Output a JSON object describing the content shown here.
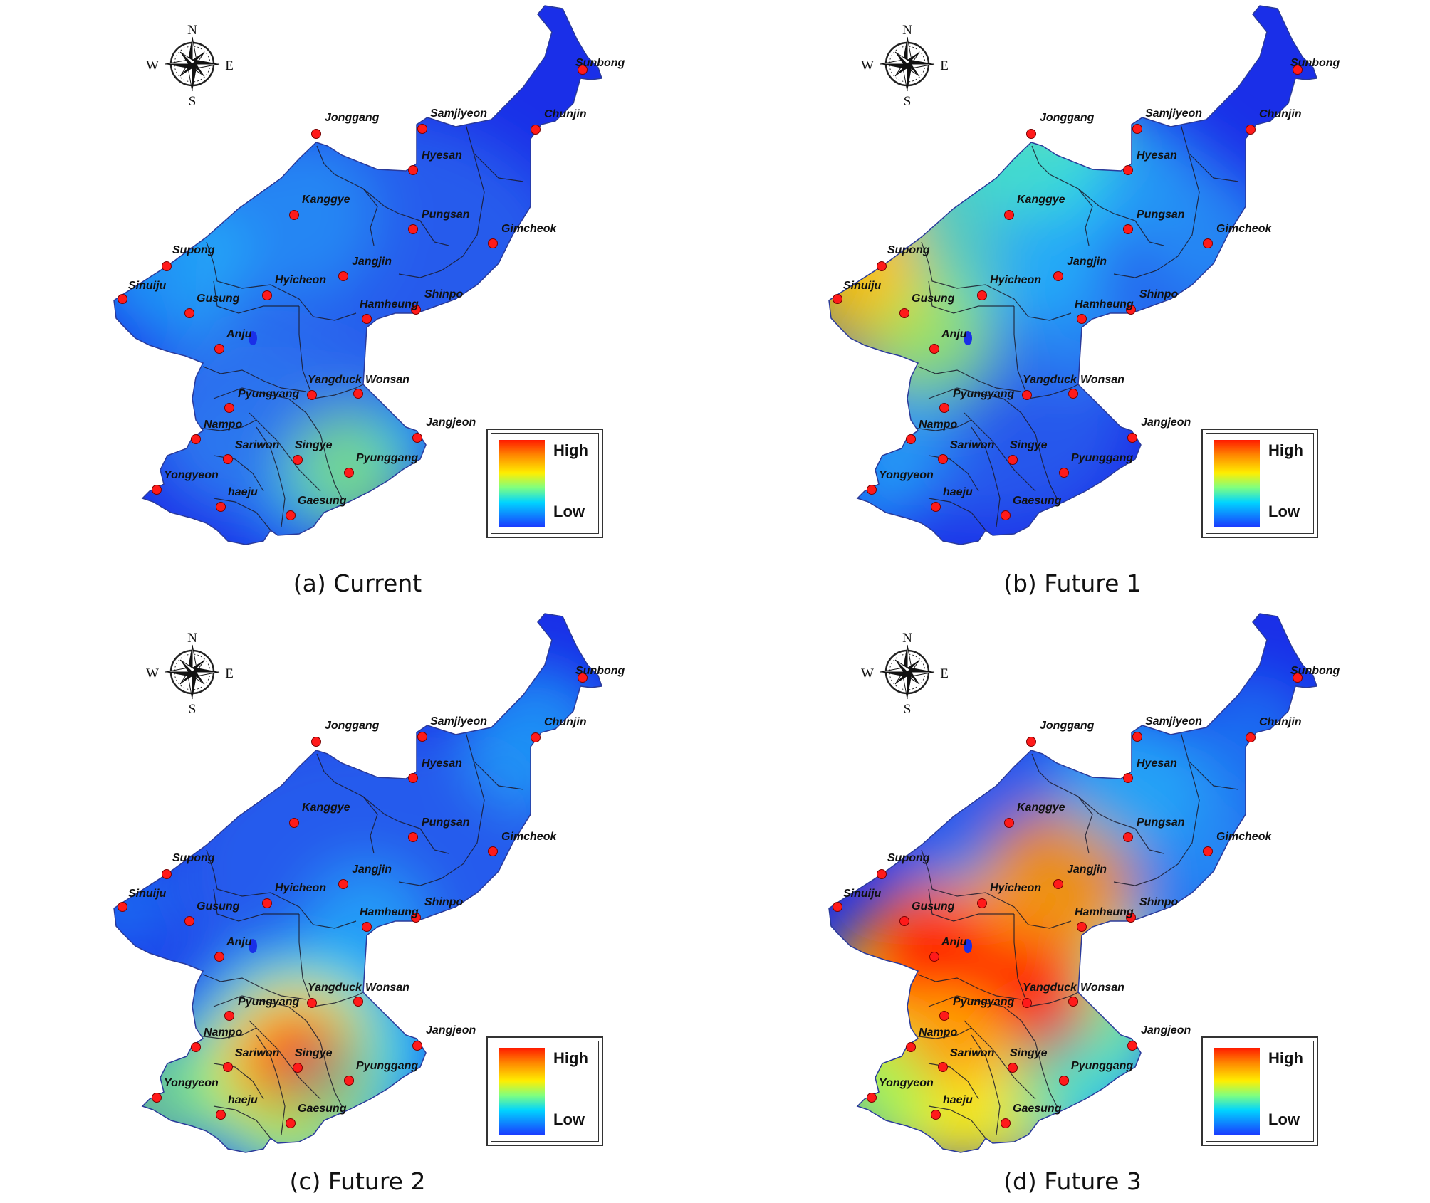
{
  "compass": {
    "n": "N",
    "s": "S",
    "e": "E",
    "w": "W"
  },
  "legend": {
    "high": "High",
    "low": "Low"
  },
  "cities": [
    "Sunbong",
    "Jonggang",
    "Samjiyeon",
    "Chunjin",
    "Hyesan",
    "Kanggye",
    "Pungsan",
    "Gimcheok",
    "Supong",
    "Jangjin",
    "Sinuiju",
    "Hyicheon",
    "Gusung",
    "Shinpo",
    "Hamheung",
    "Anju",
    "Yangduck",
    "Wonsan",
    "Pyungyang",
    "Nampo",
    "Jangjeon",
    "Sariwon",
    "Singye",
    "Pyunggang",
    "Yongyeon",
    "haeju",
    "Gaesung"
  ],
  "panels": [
    {
      "caption": "(a) Current",
      "scenario": "current"
    },
    {
      "caption": "(b) Future 1",
      "scenario": "future1"
    },
    {
      "caption": "(c) Future 2",
      "scenario": "future2"
    },
    {
      "caption": "(d) Future 3",
      "scenario": "future3"
    }
  ],
  "colors": {
    "low": "#1a2fe8",
    "mid_low": "#2f7ff0",
    "cyan": "#20d8ff",
    "green": "#8fff70",
    "yellow": "#ffee00",
    "orange": "#ff8a00",
    "high": "#ff1a00"
  }
}
